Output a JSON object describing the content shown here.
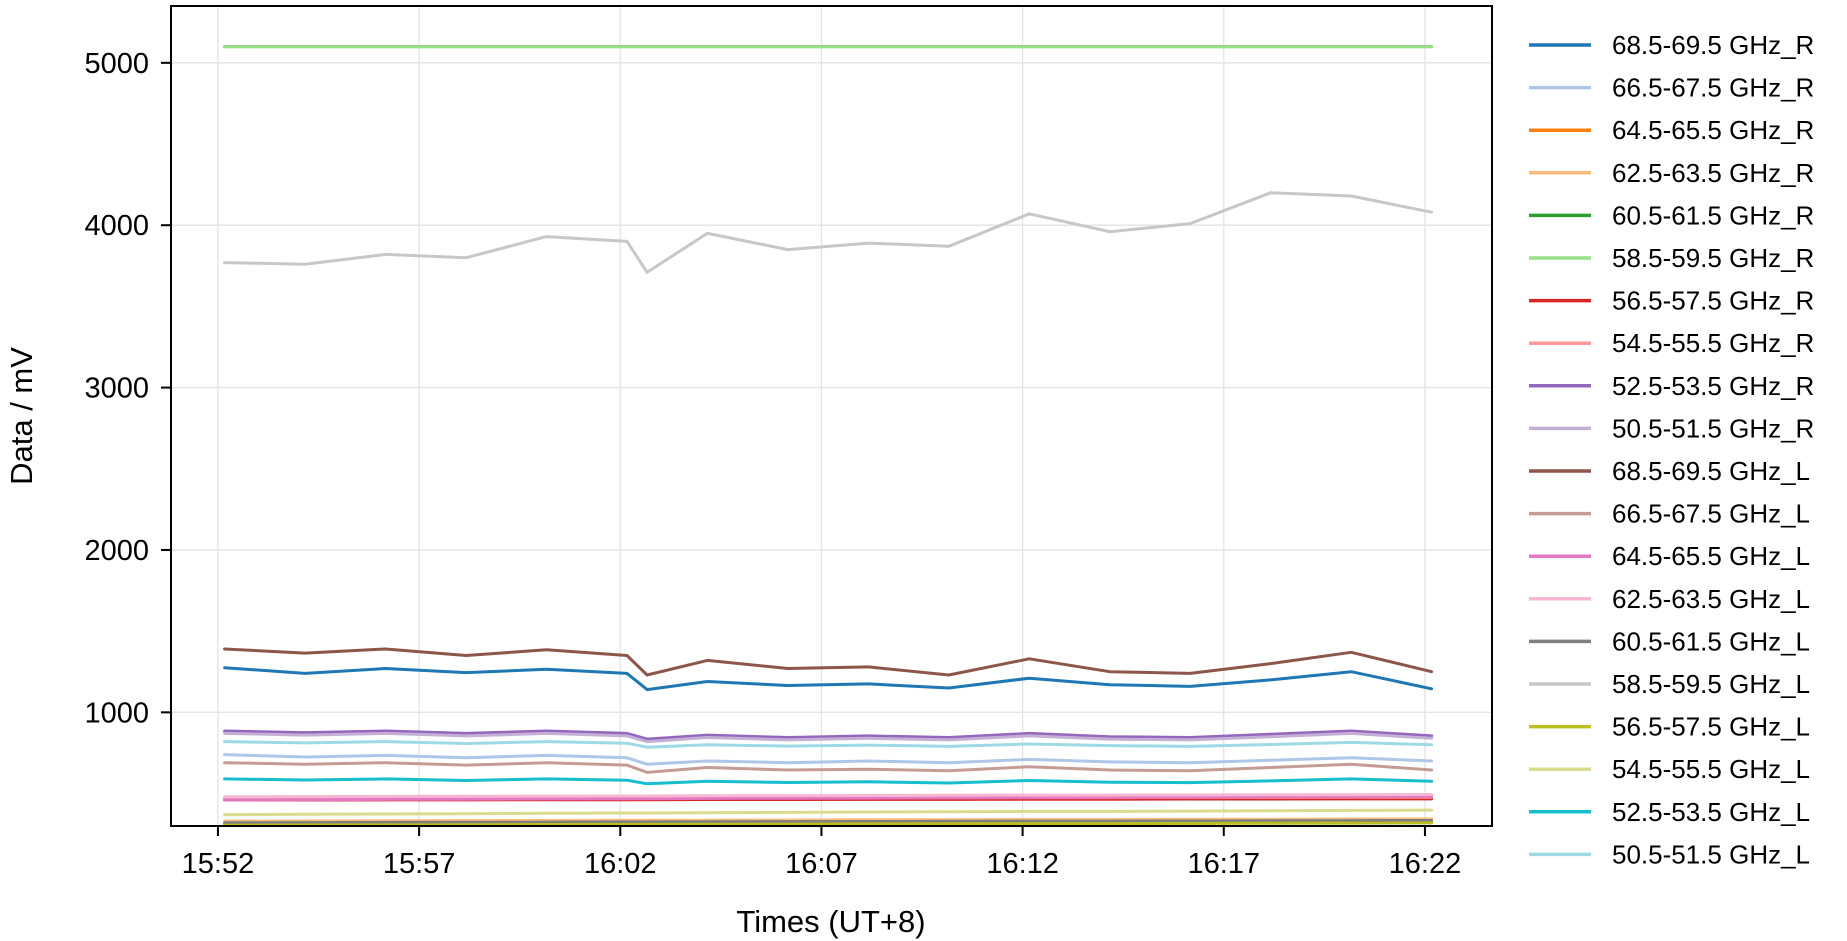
{
  "chart_data": {
    "type": "line",
    "xlabel": "Times (UT+8)",
    "ylabel": "Data / mV",
    "xlim": [
      "15:50:50",
      "16:23:40"
    ],
    "ylim": [
      300,
      5350
    ],
    "x_ticks": [
      "15:52",
      "15:57",
      "16:02",
      "16:07",
      "16:12",
      "16:17",
      "16:22"
    ],
    "y_ticks": [
      1000,
      2000,
      3000,
      4000,
      5000
    ],
    "grid": true,
    "legend_position": "outside right",
    "x": [
      "15:52:10",
      "15:54:10",
      "15:56:10",
      "15:58:10",
      "16:00:10",
      "16:02:10",
      "16:02:40",
      "16:04:10",
      "16:06:10",
      "16:08:10",
      "16:10:10",
      "16:12:10",
      "16:14:10",
      "16:16:10",
      "16:18:10",
      "16:20:10",
      "16:22:10"
    ],
    "series": [
      {
        "name": "68.5-69.5 GHz_R",
        "color": "#1f77b4",
        "values": [
          1275,
          1240,
          1270,
          1245,
          1265,
          1240,
          1140,
          1190,
          1165,
          1175,
          1150,
          1210,
          1170,
          1160,
          1200,
          1250,
          1145
        ]
      },
      {
        "name": "66.5-67.5 GHz_R",
        "color": "#aec7e8",
        "values": [
          740,
          725,
          735,
          720,
          735,
          720,
          680,
          700,
          690,
          700,
          690,
          710,
          695,
          690,
          705,
          720,
          700
        ]
      },
      {
        "name": "64.5-65.5 GHz_R",
        "color": "#ff7f0e",
        "values": [
          310,
          312,
          315,
          316,
          318,
          320,
          320,
          322,
          324,
          326,
          328,
          330,
          330,
          332,
          334,
          336,
          338
        ]
      },
      {
        "name": "62.5-63.5 GHz_R",
        "color": "#ffbb78",
        "values": [
          330,
          331,
          332,
          333,
          334,
          335,
          335,
          336,
          337,
          338,
          339,
          340,
          340,
          341,
          342,
          343,
          344
        ]
      },
      {
        "name": "60.5-61.5 GHz_R",
        "color": "#2ca02c",
        "values": [
          5100,
          5100,
          5100,
          5100,
          5100,
          5100,
          5100,
          5100,
          5100,
          5100,
          5100,
          5100,
          5100,
          5100,
          5100,
          5100,
          5100
        ]
      },
      {
        "name": "58.5-59.5 GHz_R",
        "color": "#98df8a",
        "values": [
          5100,
          5100,
          5100,
          5100,
          5100,
          5100,
          5100,
          5100,
          5100,
          5100,
          5100,
          5100,
          5100,
          5100,
          5100,
          5100,
          5100
        ]
      },
      {
        "name": "56.5-57.5 GHz_R",
        "color": "#d62728",
        "values": [
          460,
          460,
          461,
          461,
          462,
          462,
          462,
          463,
          463,
          464,
          464,
          465,
          465,
          466,
          466,
          467,
          467
        ]
      },
      {
        "name": "54.5-55.5 GHz_R",
        "color": "#ff9896",
        "values": [
          470,
          470,
          471,
          471,
          472,
          472,
          472,
          473,
          473,
          474,
          474,
          475,
          475,
          476,
          476,
          477,
          477
        ]
      },
      {
        "name": "52.5-53.5 GHz_R",
        "color": "#9467bd",
        "values": [
          885,
          875,
          885,
          870,
          885,
          870,
          835,
          860,
          845,
          855,
          845,
          870,
          850,
          845,
          865,
          885,
          855
        ]
      },
      {
        "name": "50.5-51.5 GHz_R",
        "color": "#c5b0d5",
        "values": [
          870,
          860,
          870,
          855,
          870,
          855,
          820,
          845,
          830,
          840,
          830,
          855,
          835,
          830,
          850,
          870,
          840
        ]
      },
      {
        "name": "68.5-69.5 GHz_L",
        "color": "#8c564b",
        "values": [
          1390,
          1365,
          1390,
          1350,
          1385,
          1350,
          1230,
          1320,
          1270,
          1280,
          1230,
          1330,
          1250,
          1240,
          1300,
          1370,
          1250
        ]
      },
      {
        "name": "66.5-67.5 GHz_L",
        "color": "#c49c94",
        "values": [
          690,
          680,
          690,
          675,
          690,
          675,
          630,
          660,
          645,
          650,
          640,
          665,
          645,
          640,
          660,
          680,
          645
        ]
      },
      {
        "name": "64.5-65.5 GHz_L",
        "color": "#e377c2",
        "values": [
          460,
          462,
          464,
          465,
          467,
          468,
          468,
          470,
          471,
          472,
          474,
          475,
          476,
          478,
          479,
          480,
          482
        ]
      },
      {
        "name": "62.5-63.5 GHz_L",
        "color": "#f7b6d2",
        "values": [
          480,
          481,
          482,
          483,
          484,
          485,
          485,
          486,
          487,
          488,
          489,
          490,
          490,
          491,
          492,
          493,
          494
        ]
      },
      {
        "name": "60.5-61.5 GHz_L",
        "color": "#7f7f7f",
        "values": [
          320,
          321,
          322,
          323,
          324,
          325,
          325,
          326,
          327,
          328,
          329,
          330,
          330,
          331,
          332,
          333,
          334
        ]
      },
      {
        "name": "58.5-59.5 GHz_L",
        "color": "#c7c7c7",
        "values": [
          3770,
          3760,
          3820,
          3800,
          3930,
          3900,
          3710,
          3950,
          3850,
          3890,
          3870,
          4070,
          3960,
          4010,
          4200,
          4180,
          4080
        ]
      },
      {
        "name": "56.5-57.5 GHz_L",
        "color": "#bcbd22",
        "values": [
          305,
          306,
          307,
          308,
          309,
          310,
          310,
          311,
          312,
          313,
          314,
          315,
          315,
          316,
          317,
          318,
          319
        ]
      },
      {
        "name": "54.5-55.5 GHz_L",
        "color": "#dbdb8d",
        "values": [
          370,
          372,
          374,
          376,
          378,
          380,
          380,
          382,
          384,
          386,
          388,
          390,
          390,
          392,
          394,
          396,
          398
        ]
      },
      {
        "name": "52.5-53.5 GHz_L",
        "color": "#17becf",
        "values": [
          590,
          583,
          590,
          580,
          590,
          582,
          560,
          575,
          568,
          572,
          565,
          580,
          570,
          567,
          578,
          590,
          575
        ]
      },
      {
        "name": "50.5-51.5 GHz_L",
        "color": "#9edae5",
        "values": [
          820,
          812,
          820,
          808,
          820,
          810,
          785,
          800,
          792,
          798,
          790,
          805,
          795,
          790,
          802,
          815,
          800
        ]
      }
    ]
  }
}
